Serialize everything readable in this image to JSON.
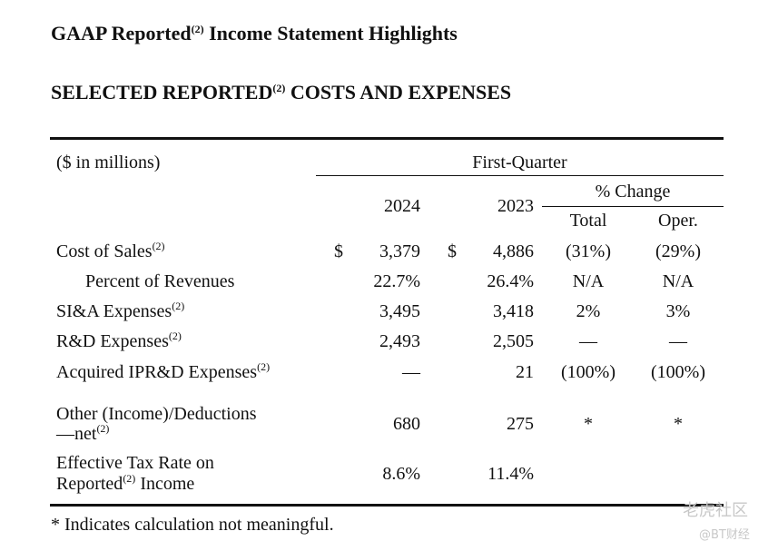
{
  "header": {
    "title": [
      "GAAP Reported",
      "(2)",
      " Income Statement Highlights"
    ],
    "subtitle": [
      "SELECTED REPORTED",
      "(2)",
      " COSTS AND EXPENSES"
    ]
  },
  "table": {
    "unit_label": "($ in millions)",
    "period": "First-Quarter",
    "years": [
      "2024",
      "2023"
    ],
    "change_label": "% Change",
    "change_columns": [
      "Total",
      "Oper."
    ],
    "currency": "$",
    "rows": [
      {
        "label": [
          [
            "Cost of Sales",
            "(2)"
          ]
        ],
        "values": [
          "3,379",
          "4,886",
          "(31%)",
          "(29%)"
        ],
        "currency": true
      },
      {
        "label": [
          [
            "Percent of Revenues"
          ]
        ],
        "values": [
          "22.7%",
          "26.4%",
          "N/A",
          "N/A"
        ],
        "indent": true
      },
      {
        "label": [
          [
            "SI&A Expenses",
            "(2)"
          ]
        ],
        "values": [
          "3,495",
          "3,418",
          "2%",
          "3%"
        ]
      },
      {
        "label": [
          [
            "R&D Expenses",
            "(2)"
          ]
        ],
        "values": [
          "2,493",
          "2,505",
          "—",
          "—"
        ]
      },
      {
        "label": [
          [
            "Acquired IPR&D Expenses",
            "(2)"
          ]
        ],
        "values": [
          "—",
          "21",
          "(100%)",
          "(100%)"
        ]
      },
      {
        "label": [
          [
            "Other (Income)/Deductions"
          ],
          [
            "—net",
            "(2)"
          ]
        ],
        "values": [
          "680",
          "275",
          "*",
          "*"
        ]
      },
      {
        "label": [
          [
            "Effective Tax Rate on"
          ],
          [
            "Reported",
            "(2)",
            " Income"
          ]
        ],
        "values": [
          "8.6%",
          "11.4%"
        ]
      }
    ]
  },
  "footnote": "* Indicates calculation not meaningful.",
  "watermark": [
    "老虎社区",
    "@BT财经"
  ]
}
